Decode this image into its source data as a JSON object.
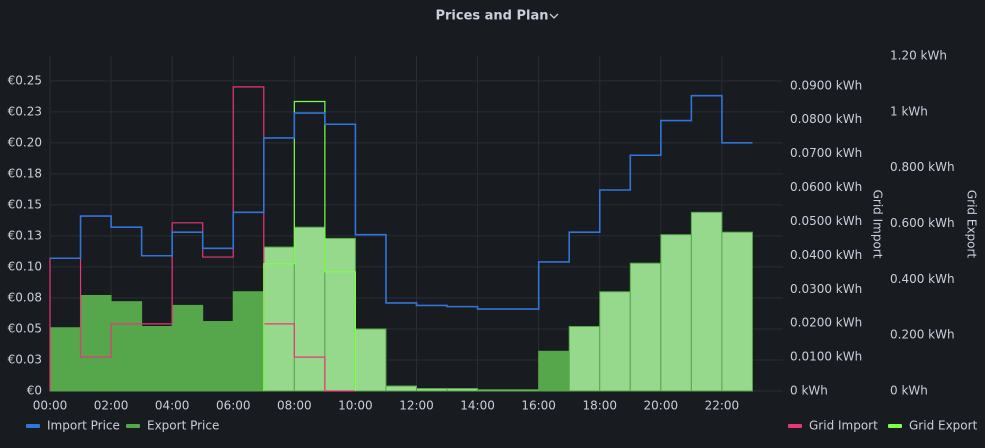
{
  "chart_data": {
    "type": "step",
    "title": "Prices and Plan",
    "x": [
      0,
      1,
      2,
      3,
      4,
      5,
      6,
      7,
      8,
      9,
      10,
      11,
      12,
      13,
      14,
      15,
      16,
      17,
      18,
      19,
      20,
      21,
      22
    ],
    "xlim": [
      0,
      24
    ],
    "xticks": [
      {
        "value": 0,
        "label": "00:00"
      },
      {
        "value": 2,
        "label": "02:00"
      },
      {
        "value": 4,
        "label": "04:00"
      },
      {
        "value": 6,
        "label": "06:00"
      },
      {
        "value": 8,
        "label": "08:00"
      },
      {
        "value": 10,
        "label": "10:00"
      },
      {
        "value": 12,
        "label": "12:00"
      },
      {
        "value": 14,
        "label": "14:00"
      },
      {
        "value": 16,
        "label": "16:00"
      },
      {
        "value": 18,
        "label": "18:00"
      },
      {
        "value": 20,
        "label": "20:00"
      },
      {
        "value": 22,
        "label": "22:00"
      }
    ],
    "ylim": [
      0,
      0.27
    ],
    "yticks": [
      {
        "value": 0,
        "label": "€0"
      },
      {
        "value": 0.025,
        "label": "€0.03"
      },
      {
        "value": 0.05,
        "label": "€0.05"
      },
      {
        "value": 0.075,
        "label": "€0.08"
      },
      {
        "value": 0.1,
        "label": "€0.10"
      },
      {
        "value": 0.125,
        "label": "€0.13"
      },
      {
        "value": 0.15,
        "label": "€0.15"
      },
      {
        "value": 0.175,
        "label": "€0.18"
      },
      {
        "value": 0.2,
        "label": "€0.20"
      },
      {
        "value": 0.225,
        "label": "€0.23"
      },
      {
        "value": 0.25,
        "label": "€0.25"
      }
    ],
    "y2label": "Grid Import",
    "y2lim": [
      0,
      0.0988
    ],
    "y2ticks": [
      {
        "value": 0,
        "label": "0 kWh"
      },
      {
        "value": 0.01,
        "label": "0.0100 kWh"
      },
      {
        "value": 0.02,
        "label": "0.0200 kWh"
      },
      {
        "value": 0.03,
        "label": "0.0300 kWh"
      },
      {
        "value": 0.04,
        "label": "0.0400 kWh"
      },
      {
        "value": 0.05,
        "label": "0.0500 kWh"
      },
      {
        "value": 0.06,
        "label": "0.0600 kWh"
      },
      {
        "value": 0.07,
        "label": "0.0700 kWh"
      },
      {
        "value": 0.08,
        "label": "0.0800 kWh"
      },
      {
        "value": 0.09,
        "label": "0.0900 kWh"
      }
    ],
    "y3label": "Grid Export",
    "y3lim": [
      0,
      1.2
    ],
    "y3ticks": [
      {
        "value": 0,
        "label": "0 kWh"
      },
      {
        "value": 0.2,
        "label": "0.200 kWh"
      },
      {
        "value": 0.4,
        "label": "0.400 kWh"
      },
      {
        "value": 0.6,
        "label": "0.600 kWh"
      },
      {
        "value": 0.8,
        "label": "0.800 kWh"
      },
      {
        "value": 1,
        "label": "1 kWh"
      },
      {
        "value": 1.2,
        "label": "1.20 kWh"
      }
    ],
    "grid": true,
    "series": [
      {
        "name": "Import Price",
        "color": "#3274d9",
        "style": "line",
        "axis": "y",
        "values": [
          0.107,
          0.141,
          0.132,
          0.109,
          0.128,
          0.115,
          0.144,
          0.204,
          0.224,
          0.215,
          0.126,
          0.071,
          0.069,
          0.068,
          0.066,
          0.066,
          0.104,
          0.128,
          0.162,
          0.19,
          0.218,
          0.238,
          0.2
        ]
      },
      {
        "name": "Export Price",
        "color": "#56a64b",
        "style": "area",
        "axis": "y",
        "fill_colors": [
          "#56a64b",
          "#56a64b",
          "#56a64b",
          "#56a64b",
          "#56a64b",
          "#56a64b",
          "#56a64b",
          "#96d98d",
          "#96d98d",
          "#96d98d",
          "#96d98d",
          "#96d98d",
          "#96d98d",
          "#96d98d",
          "#96d98d",
          "#96d98d",
          "#56a64b",
          "#96d98d",
          "#96d98d",
          "#96d98d",
          "#96d98d",
          "#96d98d",
          "#96d98d"
        ],
        "values": [
          0.051,
          0.077,
          0.072,
          0.052,
          0.069,
          0.056,
          0.08,
          0.116,
          0.132,
          0.123,
          0.05,
          0.004,
          0.002,
          0.002,
          0.001,
          0.001,
          0.032,
          0.052,
          0.08,
          0.103,
          0.126,
          0.144,
          0.128
        ]
      },
      {
        "name": "Grid Import",
        "color": "#e8367c",
        "style": "outline",
        "axis": "y2",
        "values": [
          0.0392,
          0.01,
          0.0198,
          0.0198,
          0.0496,
          0.0395,
          0.0897,
          0.0198,
          0.01,
          0,
          null,
          null,
          null,
          null,
          null,
          null,
          null,
          null,
          null,
          null,
          null,
          null,
          null
        ]
      },
      {
        "name": "Grid Export",
        "color": "#7eff4a",
        "style": "outline",
        "axis": "y3",
        "values": [
          null,
          null,
          null,
          null,
          null,
          null,
          null,
          0.456,
          1.037,
          0.427,
          null,
          null,
          null,
          null,
          null,
          null,
          null,
          null,
          null,
          null,
          null,
          null,
          null
        ]
      }
    ]
  }
}
